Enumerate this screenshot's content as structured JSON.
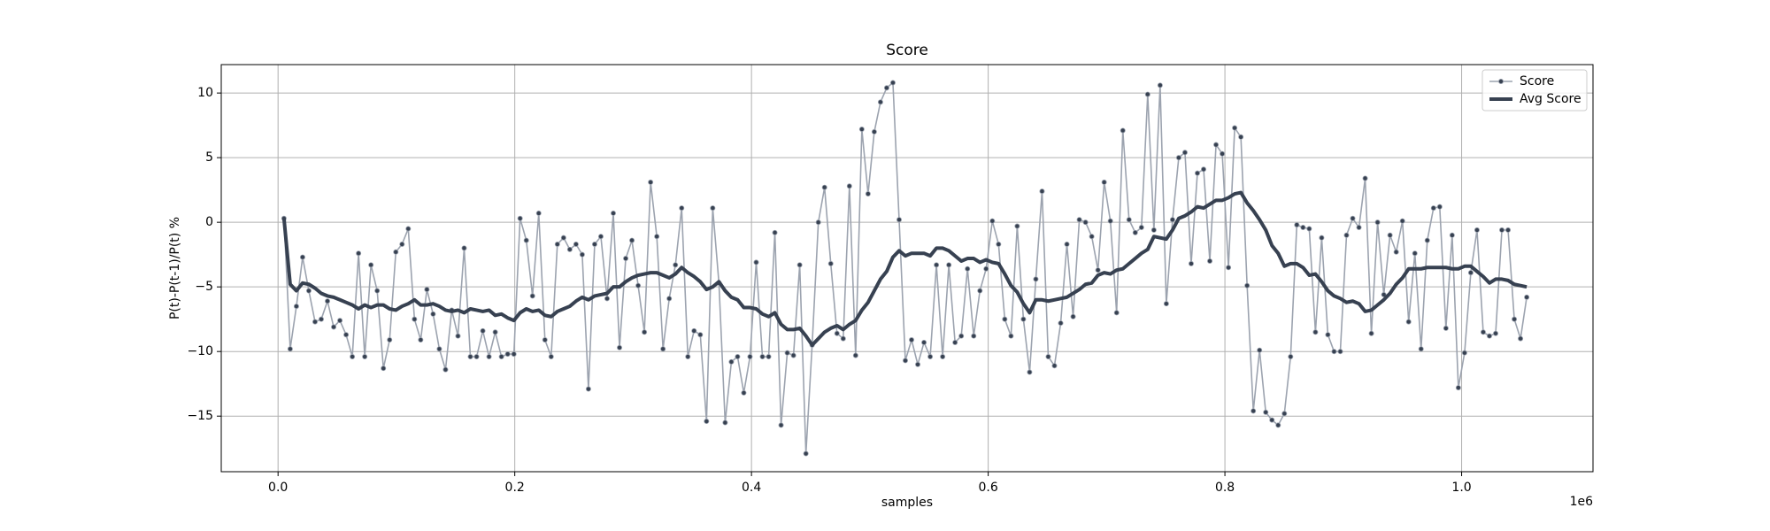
{
  "chart_data": {
    "type": "line",
    "title": "Score",
    "xlabel": "samples",
    "ylabel": "P(t)-P(t-1)/P(t) %",
    "x_offset_label": "1e6",
    "x": [
      5000,
      10250,
      15500,
      20750,
      26000,
      31250,
      36500,
      41750,
      47000,
      52250,
      57500,
      62750,
      68000,
      73250,
      78500,
      83750,
      89000,
      94250,
      99500,
      104750,
      110000,
      115250,
      120500,
      125750,
      131000,
      136250,
      141500,
      146750,
      152000,
      157250,
      162500,
      167750,
      173000,
      178250,
      183500,
      188750,
      194000,
      199250,
      204500,
      209750,
      215000,
      220250,
      225500,
      230750,
      236000,
      241250,
      246500,
      251750,
      257000,
      262250,
      267500,
      272750,
      278000,
      283250,
      288500,
      293750,
      299000,
      304250,
      309500,
      314750,
      320000,
      325250,
      330500,
      335750,
      341000,
      346250,
      351500,
      356750,
      362000,
      367250,
      372500,
      377750,
      383000,
      388250,
      393500,
      398750,
      404000,
      409250,
      414500,
      419750,
      425000,
      430250,
      435500,
      440750,
      446000,
      451250,
      456500,
      461750,
      467000,
      472250,
      477500,
      482750,
      488000,
      493250,
      498500,
      503750,
      509000,
      514250,
      519500,
      524750,
      530000,
      535250,
      540500,
      545750,
      551000,
      556250,
      561500,
      566750,
      572000,
      577250,
      582500,
      587750,
      593000,
      598250,
      603500,
      608750,
      614000,
      619250,
      624500,
      629750,
      635000,
      640250,
      645500,
      650750,
      656000,
      661250,
      666500,
      671750,
      677000,
      682250,
      687500,
      692750,
      698000,
      703250,
      708500,
      713750,
      719000,
      724250,
      729500,
      734750,
      740000,
      745250,
      750500,
      755750,
      761000,
      766250,
      771500,
      776750,
      782000,
      787250,
      792500,
      797750,
      803000,
      808250,
      813500,
      818750,
      824000,
      829250,
      834500,
      839750,
      845000,
      850250,
      855500,
      860750,
      866000,
      871250,
      876500,
      881750,
      887000,
      892250,
      897500,
      902750,
      908000,
      913250,
      918500,
      923750,
      929000,
      934250,
      939500,
      944750,
      950000,
      955250,
      960500,
      965750,
      971000,
      976250,
      981500,
      986750,
      992000,
      997250,
      1002500,
      1007750,
      1013000,
      1018250,
      1023500,
      1028750,
      1034000,
      1039250,
      1044500,
      1049750,
      1055000
    ],
    "series": [
      {
        "name": "Score",
        "color": "#9ca3af",
        "marker_color": "#374151",
        "markers": true,
        "values": [
          0.3,
          -9.8,
          -6.5,
          -2.7,
          -5.3,
          -7.7,
          -7.5,
          -6.1,
          -8.1,
          -7.6,
          -8.7,
          -10.4,
          -2.4,
          -10.4,
          -3.3,
          -5.3,
          -11.3,
          -9.1,
          -2.3,
          -1.7,
          -0.5,
          -7.5,
          -9.1,
          -5.2,
          -7.1,
          -9.8,
          -11.4,
          -6.8,
          -8.8,
          -2.0,
          -10.4,
          -10.4,
          -8.4,
          -10.4,
          -8.5,
          -10.4,
          -10.2,
          -10.2,
          0.3,
          -1.4,
          -5.7,
          0.7,
          -9.1,
          -10.4,
          -1.7,
          -1.2,
          -2.1,
          -1.7,
          -2.5,
          -12.9,
          -1.7,
          -1.1,
          -5.9,
          0.7,
          -9.7,
          -2.8,
          -1.4,
          -4.9,
          -8.5,
          3.1,
          -1.1,
          -9.8,
          -5.9,
          -3.3,
          1.1,
          -10.4,
          -8.4,
          -8.7,
          -15.4,
          1.1,
          -4.7,
          -15.5,
          -10.8,
          -10.4,
          -13.2,
          -10.4,
          -3.1,
          -10.4,
          -10.4,
          -0.8,
          -15.7,
          -10.1,
          -10.3,
          -3.3,
          -17.9,
          -9.5,
          0.0,
          2.7,
          -3.2,
          -8.6,
          -9.0,
          2.8,
          -10.3,
          7.2,
          2.2,
          7.0,
          9.3,
          10.4,
          10.8,
          0.2,
          -10.7,
          -9.1,
          -11.0,
          -9.3,
          -10.4,
          -3.3,
          -10.4,
          -3.3,
          -9.3,
          -8.8,
          -3.6,
          -8.8,
          -5.3,
          -3.6,
          0.1,
          -1.7,
          -7.5,
          -8.8,
          -0.3,
          -7.5,
          -11.6,
          -4.4,
          2.4,
          -10.4,
          -11.1,
          -7.8,
          -1.7,
          -7.3,
          0.2,
          0.0,
          -1.1,
          -3.7,
          3.1,
          0.1,
          -7.0,
          7.1,
          0.2,
          -0.8,
          -0.4,
          9.9,
          -0.6,
          10.6,
          -6.3,
          0.2,
          5.0,
          5.4,
          -3.2,
          3.8,
          4.1,
          -3.0,
          6.0,
          5.3,
          -3.5,
          7.3,
          6.6,
          -4.9,
          -14.6,
          -9.9,
          -14.7,
          -15.3,
          -15.7,
          -14.8,
          -10.4,
          -0.2,
          -0.4,
          -0.5,
          -8.5,
          -1.2,
          -8.7,
          -10.0,
          -10.0,
          -1.0,
          0.3,
          -0.4,
          3.4,
          -8.6,
          0.0,
          -5.6,
          -1.0,
          -2.3,
          0.1,
          -7.7,
          -2.4,
          -9.8,
          -1.4,
          1.1,
          1.2,
          -8.2,
          -1.0,
          -12.8,
          -10.1,
          -3.9,
          -0.6,
          -8.5,
          -8.8,
          -8.6,
          -0.6,
          -0.6,
          -7.5,
          -9.0,
          -5.8
        ]
      },
      {
        "name": "Avg Score",
        "color": "#374151",
        "markers": false,
        "values": [
          0.3,
          -4.8,
          -5.3,
          -4.7,
          -4.8,
          -5.1,
          -5.5,
          -5.7,
          -5.8,
          -6.0,
          -6.2,
          -6.4,
          -6.7,
          -6.4,
          -6.6,
          -6.4,
          -6.4,
          -6.7,
          -6.8,
          -6.5,
          -6.3,
          -6.0,
          -6.4,
          -6.4,
          -6.3,
          -6.5,
          -6.8,
          -6.9,
          -6.8,
          -7.0,
          -6.7,
          -6.8,
          -6.9,
          -6.8,
          -7.2,
          -7.1,
          -7.4,
          -7.6,
          -7.0,
          -6.7,
          -6.9,
          -6.8,
          -7.2,
          -7.3,
          -6.9,
          -6.7,
          -6.5,
          -6.1,
          -5.8,
          -6.0,
          -5.7,
          -5.6,
          -5.5,
          -5.0,
          -5.0,
          -4.6,
          -4.3,
          -4.1,
          -4.0,
          -3.9,
          -3.9,
          -4.1,
          -4.3,
          -4.0,
          -3.5,
          -3.9,
          -4.2,
          -4.6,
          -5.2,
          -5.0,
          -4.6,
          -5.3,
          -5.8,
          -6.0,
          -6.6,
          -6.6,
          -6.7,
          -7.1,
          -7.3,
          -7.0,
          -7.9,
          -8.3,
          -8.3,
          -8.2,
          -8.8,
          -9.5,
          -9.0,
          -8.5,
          -8.2,
          -8.0,
          -8.3,
          -7.9,
          -7.6,
          -6.8,
          -6.2,
          -5.3,
          -4.4,
          -3.8,
          -2.7,
          -2.2,
          -2.6,
          -2.4,
          -2.4,
          -2.4,
          -2.6,
          -2.0,
          -2.0,
          -2.2,
          -2.6,
          -3.0,
          -2.8,
          -2.8,
          -3.1,
          -2.9,
          -3.1,
          -3.2,
          -4.0,
          -4.9,
          -5.4,
          -6.3,
          -7.0,
          -6.0,
          -6.0,
          -6.1,
          -6.0,
          -5.9,
          -5.8,
          -5.5,
          -5.2,
          -4.8,
          -4.7,
          -4.1,
          -3.9,
          -4.0,
          -3.7,
          -3.6,
          -3.2,
          -2.8,
          -2.4,
          -2.1,
          -1.1,
          -1.2,
          -1.3,
          -0.6,
          0.3,
          0.5,
          0.8,
          1.2,
          1.1,
          1.4,
          1.7,
          1.7,
          1.9,
          2.2,
          2.3,
          1.5,
          0.9,
          0.2,
          -0.6,
          -1.8,
          -2.4,
          -3.4,
          -3.2,
          -3.2,
          -3.5,
          -4.1,
          -4.0,
          -4.6,
          -5.3,
          -5.7,
          -5.9,
          -6.2,
          -6.1,
          -6.3,
          -6.9,
          -6.8,
          -6.4,
          -6.0,
          -5.5,
          -4.8,
          -4.3,
          -3.6,
          -3.6,
          -3.6,
          -3.5,
          -3.5,
          -3.5,
          -3.5,
          -3.6,
          -3.6,
          -3.4,
          -3.4,
          -3.8,
          -4.2,
          -4.7,
          -4.4,
          -4.4,
          -4.5,
          -4.8,
          -4.9,
          -5.0
        ]
      }
    ],
    "xlim": [
      -48000,
      1111000
    ],
    "xticks": [
      {
        "value": 0,
        "label": "0.0"
      },
      {
        "value": 200000,
        "label": "0.2"
      },
      {
        "value": 400000,
        "label": "0.4"
      },
      {
        "value": 600000,
        "label": "0.6"
      },
      {
        "value": 800000,
        "label": "0.8"
      },
      {
        "value": 1000000,
        "label": "1.0"
      }
    ],
    "ylim": [
      -19.3,
      12.2
    ],
    "yticks": [
      {
        "value": -15,
        "label": "−15"
      },
      {
        "value": -10,
        "label": "−10"
      },
      {
        "value": -5,
        "label": "−5"
      },
      0,
      5,
      10
    ],
    "grid": true,
    "legend": "upper right"
  }
}
